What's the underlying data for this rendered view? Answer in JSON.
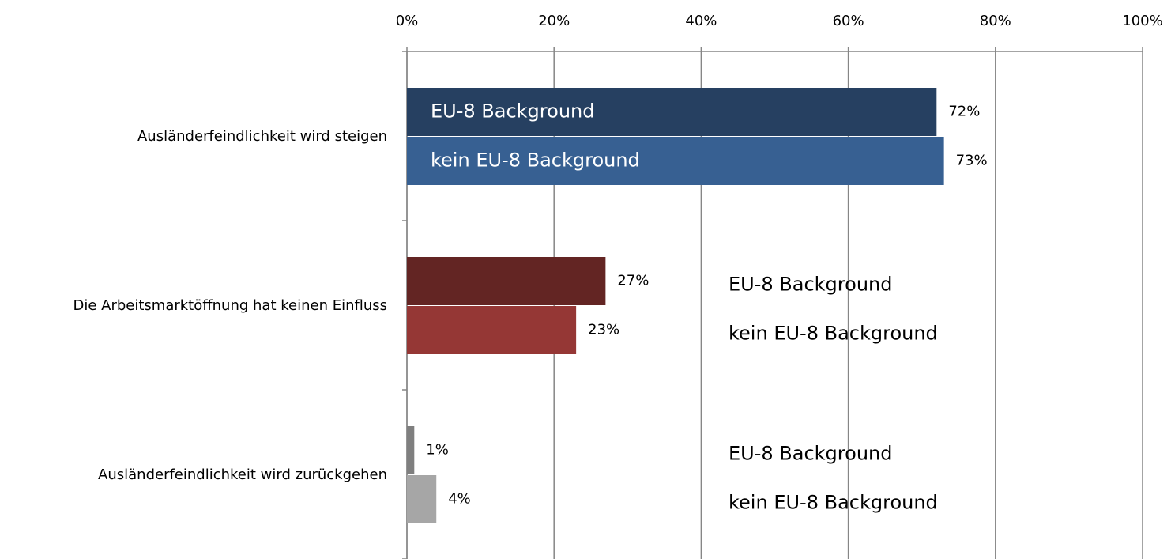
{
  "chart_data": {
    "type": "barh",
    "categories": [
      "Ausländerfeindlichkeit wird steigen",
      "Die Arbeitsmarktöffnung hat keinen Einfluss",
      "Ausländerfeindlichkeit wird zurückgehen"
    ],
    "series": [
      {
        "name": "EU-8 Background",
        "colors": [
          "#264061",
          "#632523",
          "#7f7f7f"
        ],
        "values": [
          72,
          27,
          1
        ],
        "value_labels": [
          "72%",
          "27%",
          "1%"
        ]
      },
      {
        "name": "kein EU-8 Background",
        "colors": [
          "#376092",
          "#953735",
          "#a6a6a6"
        ],
        "values": [
          73,
          23,
          4
        ],
        "value_labels": [
          "73%",
          "23%",
          "4%"
        ]
      }
    ],
    "xlim": [
      0,
      100
    ],
    "xticks": [
      {
        "value": 0,
        "label": "0%"
      },
      {
        "value": 20,
        "label": "20%"
      },
      {
        "value": 40,
        "label": "40%"
      },
      {
        "value": 60,
        "label": "60%"
      },
      {
        "value": 80,
        "label": "80%"
      },
      {
        "value": 100,
        "label": "100%"
      }
    ],
    "grid": true
  }
}
